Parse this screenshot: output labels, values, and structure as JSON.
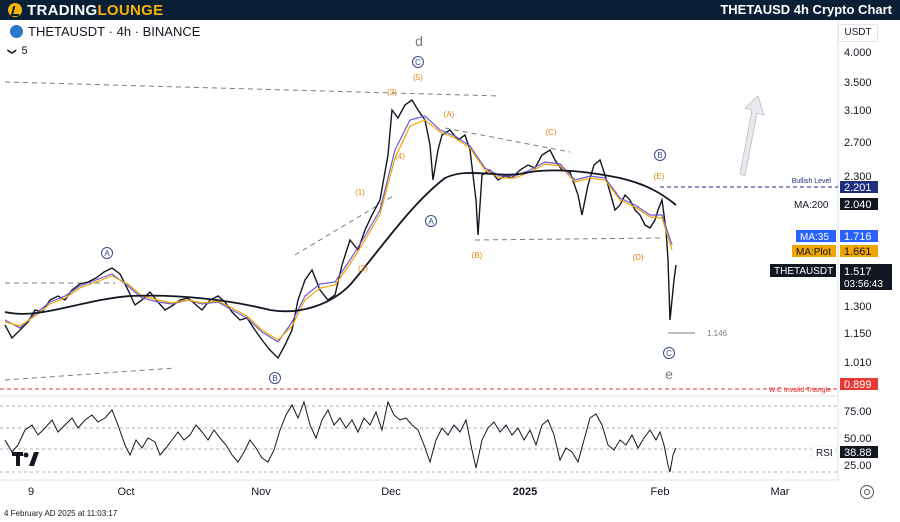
{
  "header": {
    "brand_part1": "TRADING",
    "brand_part2": "LOUNGE",
    "title": "THETAUSD 4h Crypto Chart"
  },
  "symbol": {
    "name": "THETAUSDT",
    "interval": "4h",
    "exchange": "BINANCE",
    "separator": " · ",
    "interval_count": "5"
  },
  "currency_button": "USDT",
  "price_axis": {
    "ticks": [
      "4.000",
      "3.500",
      "3.100",
      "2.700",
      "2.300",
      "1.300",
      "1.150",
      "1.010"
    ]
  },
  "rsi_axis": {
    "ticks": [
      "75.00",
      "50.00",
      "25.00"
    ]
  },
  "time_axis": {
    "labels": [
      "9",
      "Oct",
      "Nov",
      "Dec",
      "2025",
      "Feb",
      "Mar"
    ]
  },
  "wave_labels": {
    "top": "d",
    "bottom": "e",
    "circle_c_top": "C",
    "circle_a_left": "A",
    "circle_b_left": "B",
    "circle_a_mid": "A",
    "circle_b_right": "B",
    "circle_c_bottom": "C",
    "w5": "(5)",
    "w3": "(3)",
    "w4": "(4)",
    "w1": "(1)",
    "w2": "(2)",
    "wA": "(A)",
    "wB": "(B)",
    "wC": "(C)",
    "wD": "(D)",
    "wE": "(E)",
    "low_price": "1.146"
  },
  "levels": {
    "bullish_label": "Bullish Level",
    "bullish_value": "2.201",
    "invalid_label": "W.C Invalid Triangle",
    "invalid_value": "0.899"
  },
  "price_badges": {
    "ma200_label": "MA:200",
    "ma200_value": "2.040",
    "ma35_label": "MA:35",
    "ma35_value": "1.716",
    "maplot_label": "MA:Plot",
    "maplot_value": "1.661",
    "symbol_label": "THETAUSDT",
    "last_price": "1.517",
    "countdown": "03:56:43"
  },
  "rsi": {
    "label": "RSI",
    "value": "38.88"
  },
  "timestamp": "4 February AD 2025 at 11:03:17",
  "colors": {
    "accent_blue": "#2962ff",
    "ma200": "#131722",
    "ma35": "#6b5bd6",
    "maplot": "#f0a500",
    "wave_orange": "#e8820c",
    "wave_circle": "#3b4a8a",
    "bullish": "#1e2f80",
    "invalid": "#e53935",
    "header_bg": "#0b1f36",
    "brand_gold": "#f7b500"
  }
}
